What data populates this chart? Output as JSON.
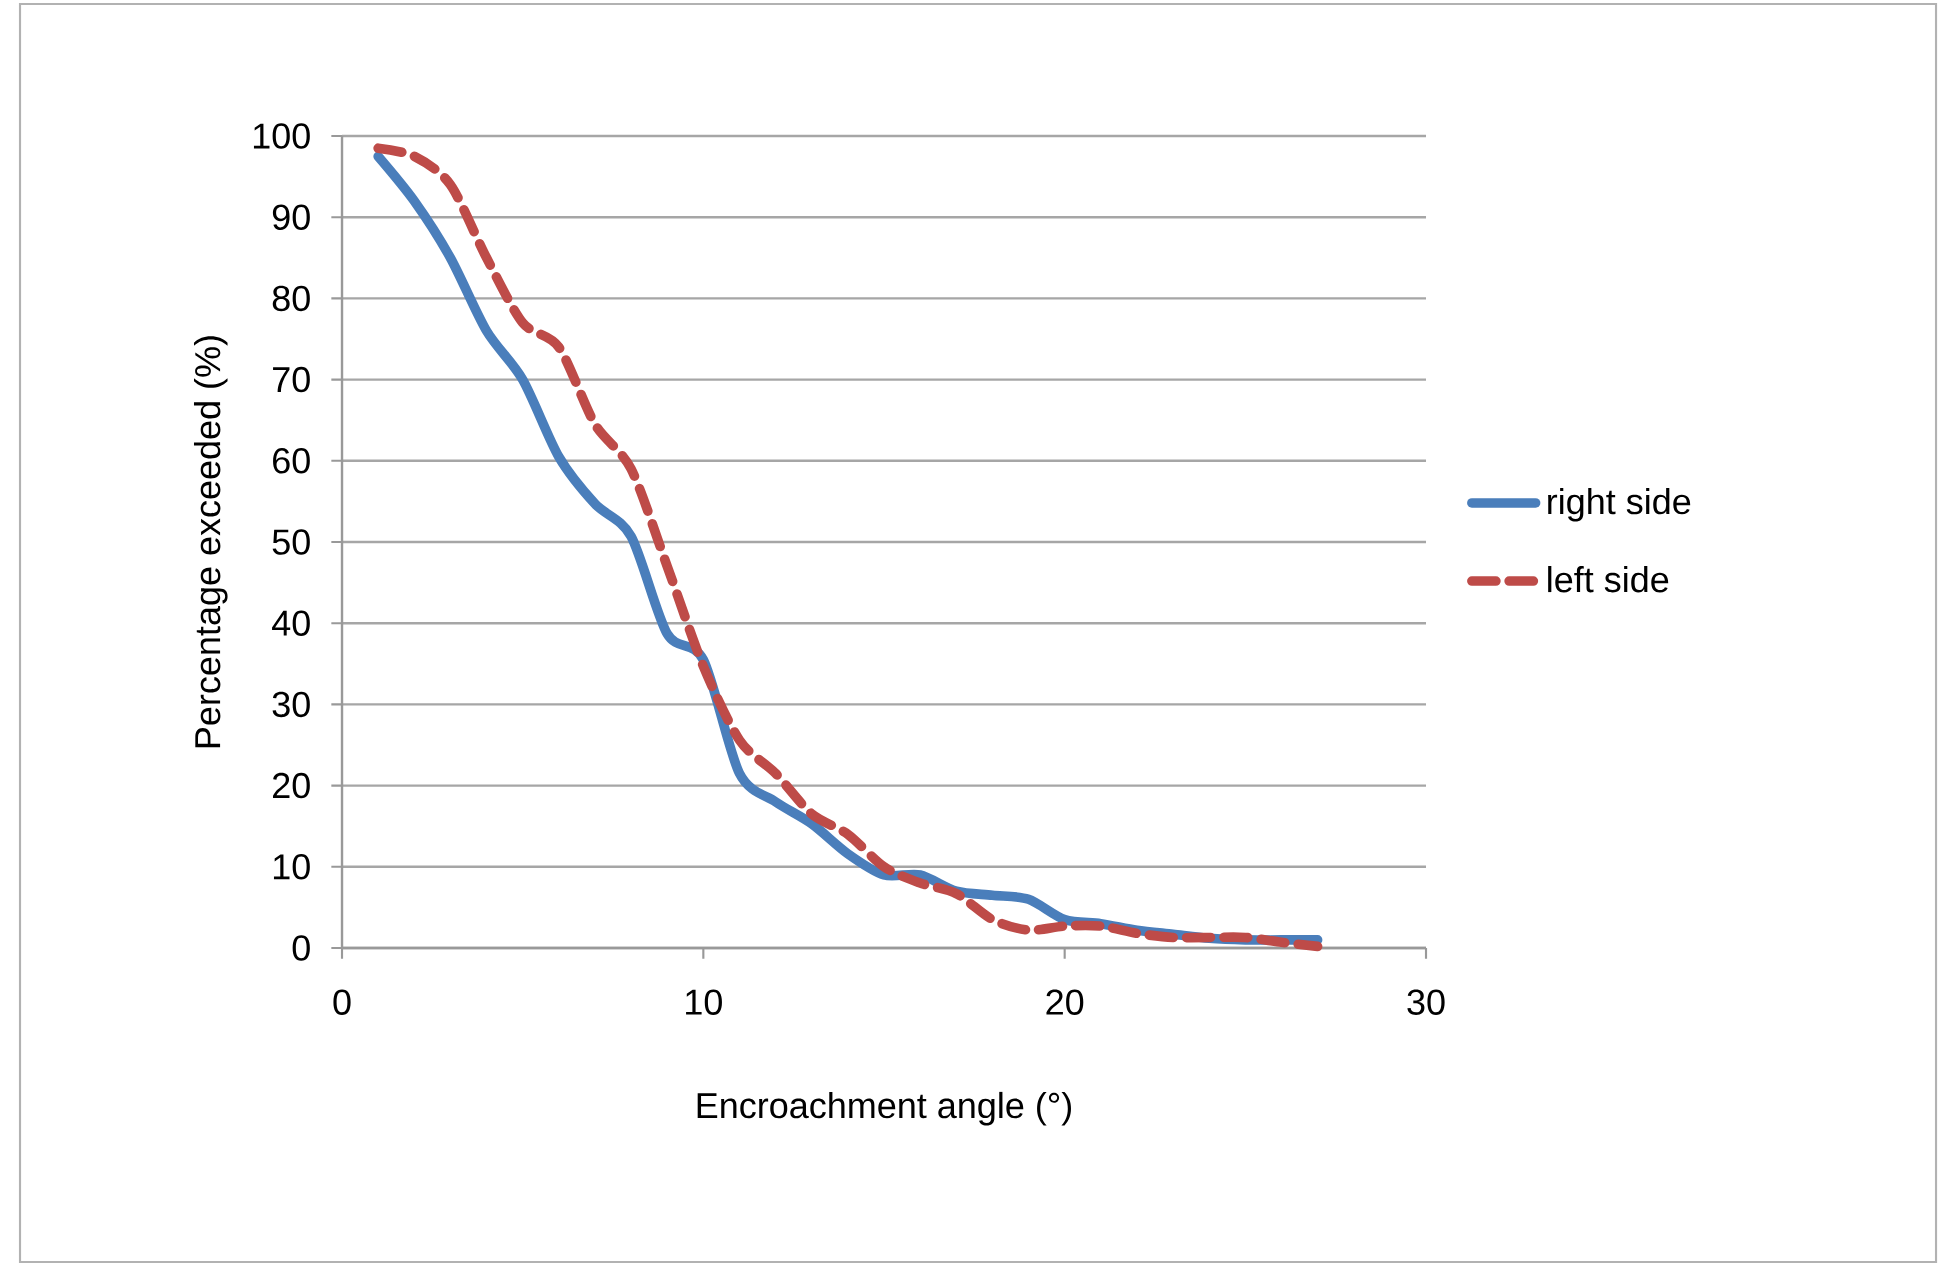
{
  "chart_data": {
    "type": "line",
    "xlabel": "Encroachment angle (°)",
    "ylabel": "Percentage exceeded (%)",
    "x": [
      1,
      2,
      3,
      4,
      5,
      6,
      7,
      8,
      9,
      10,
      11,
      12,
      13,
      14,
      15,
      16,
      17,
      18,
      19,
      20,
      21,
      22,
      23,
      24,
      25,
      26,
      27
    ],
    "series": [
      {
        "name": "right side",
        "color": "#4a7ebb",
        "line_style": "solid",
        "values": [
          97.5,
          92,
          85,
          76,
          70,
          60.5,
          54.7,
          50.7,
          38.7,
          35.5,
          21.5,
          18,
          15.3,
          11.6,
          9,
          9,
          7,
          6.5,
          6,
          3.5,
          3,
          2.2,
          1.7,
          1.2,
          1,
          1,
          1
        ]
      },
      {
        "name": "left side",
        "color": "#be4b48",
        "line_style": "dashed",
        "values": [
          98.5,
          97.5,
          94,
          85,
          77,
          74,
          64.5,
          59,
          47,
          34.7,
          25.6,
          21.5,
          16.5,
          14,
          10,
          8,
          6.7,
          3.5,
          2.2,
          2.7,
          2.7,
          1.8,
          1.3,
          1.3,
          1.3,
          0.7,
          0.2
        ]
      }
    ],
    "xlim": [
      0,
      30
    ],
    "xticks": [
      0,
      10,
      20,
      30
    ],
    "ylim": [
      0,
      100
    ],
    "yticks": [
      0,
      10,
      20,
      30,
      40,
      50,
      60,
      70,
      80,
      90,
      100
    ],
    "grid": "y",
    "legend": "right",
    "marker": "none"
  }
}
